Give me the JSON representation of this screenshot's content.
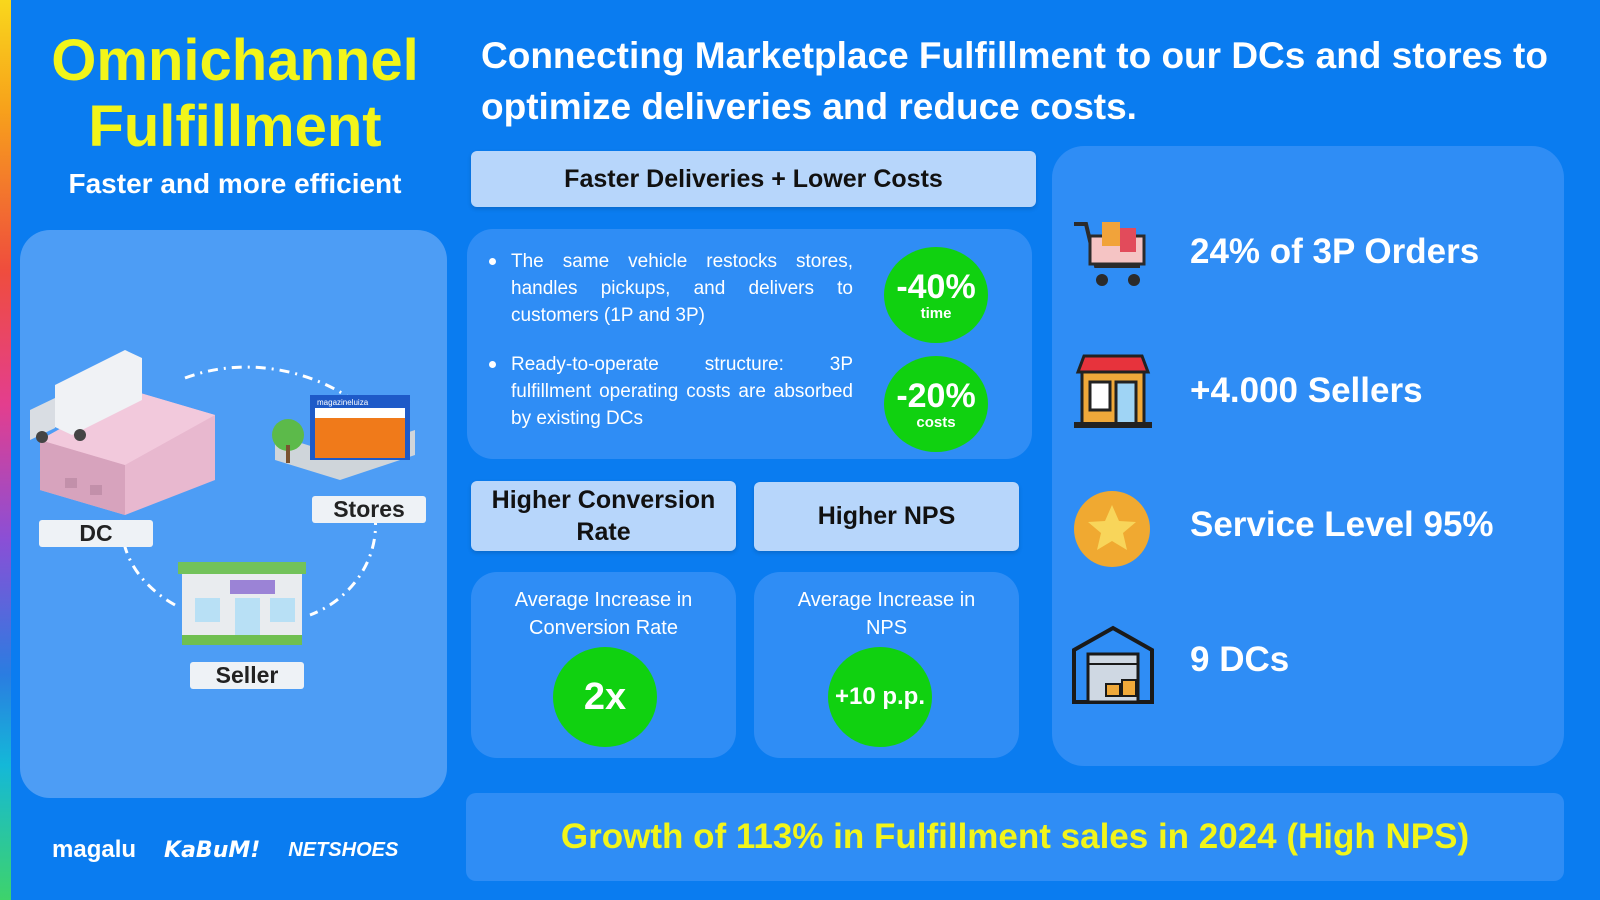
{
  "page": {
    "title_line1": "Omnichannel",
    "title_line2": "Fulfillment",
    "subtitle": "Faster and more efficient",
    "headline": "Connecting Marketplace Fulfillment to our DCs and stores to optimize deliveries and reduce costs."
  },
  "map": {
    "dc_label": "DC",
    "stores_label": "Stores",
    "seller_label": "Seller",
    "storefront_sign": "magazineluiza"
  },
  "benefits": {
    "header": "Faster Deliveries + Lower Costs",
    "items": [
      {
        "text": "The same vehicle restocks stores, handles pickups, and delivers to customers (1P and 3P)",
        "value": "-40%",
        "unit": "time"
      },
      {
        "text": "Ready-to-operate structure: 3P fulfillment operating costs are absorbed by existing DCs",
        "value": "-20%",
        "unit": "costs"
      }
    ]
  },
  "conversion": {
    "header": "Higher Conversion Rate",
    "caption": "Average Increase in Conversion Rate",
    "value": "2x"
  },
  "nps": {
    "header": "Higher NPS",
    "caption": "Average Increase in NPS",
    "value": "+10 p.p."
  },
  "stats": [
    {
      "icon": "shopping-cart-icon",
      "text": "24% of 3P Orders"
    },
    {
      "icon": "store-icon",
      "text": "+4.000 Sellers"
    },
    {
      "icon": "star-icon",
      "text": "Service Level 95%"
    },
    {
      "icon": "warehouse-icon",
      "text": "9 DCs"
    }
  ],
  "banner": {
    "text": "Growth of 113% in Fulfillment sales in 2024 (High NPS)"
  },
  "logos": [
    "magalu",
    "KaBuM!",
    "NETSHOES"
  ],
  "colors": {
    "background": "#0a7cf0",
    "title_yellow": "#f2f51a",
    "badge_green": "#10d110",
    "header_light_blue": "#b7d6fb",
    "card_blue": "#2f8df5"
  }
}
